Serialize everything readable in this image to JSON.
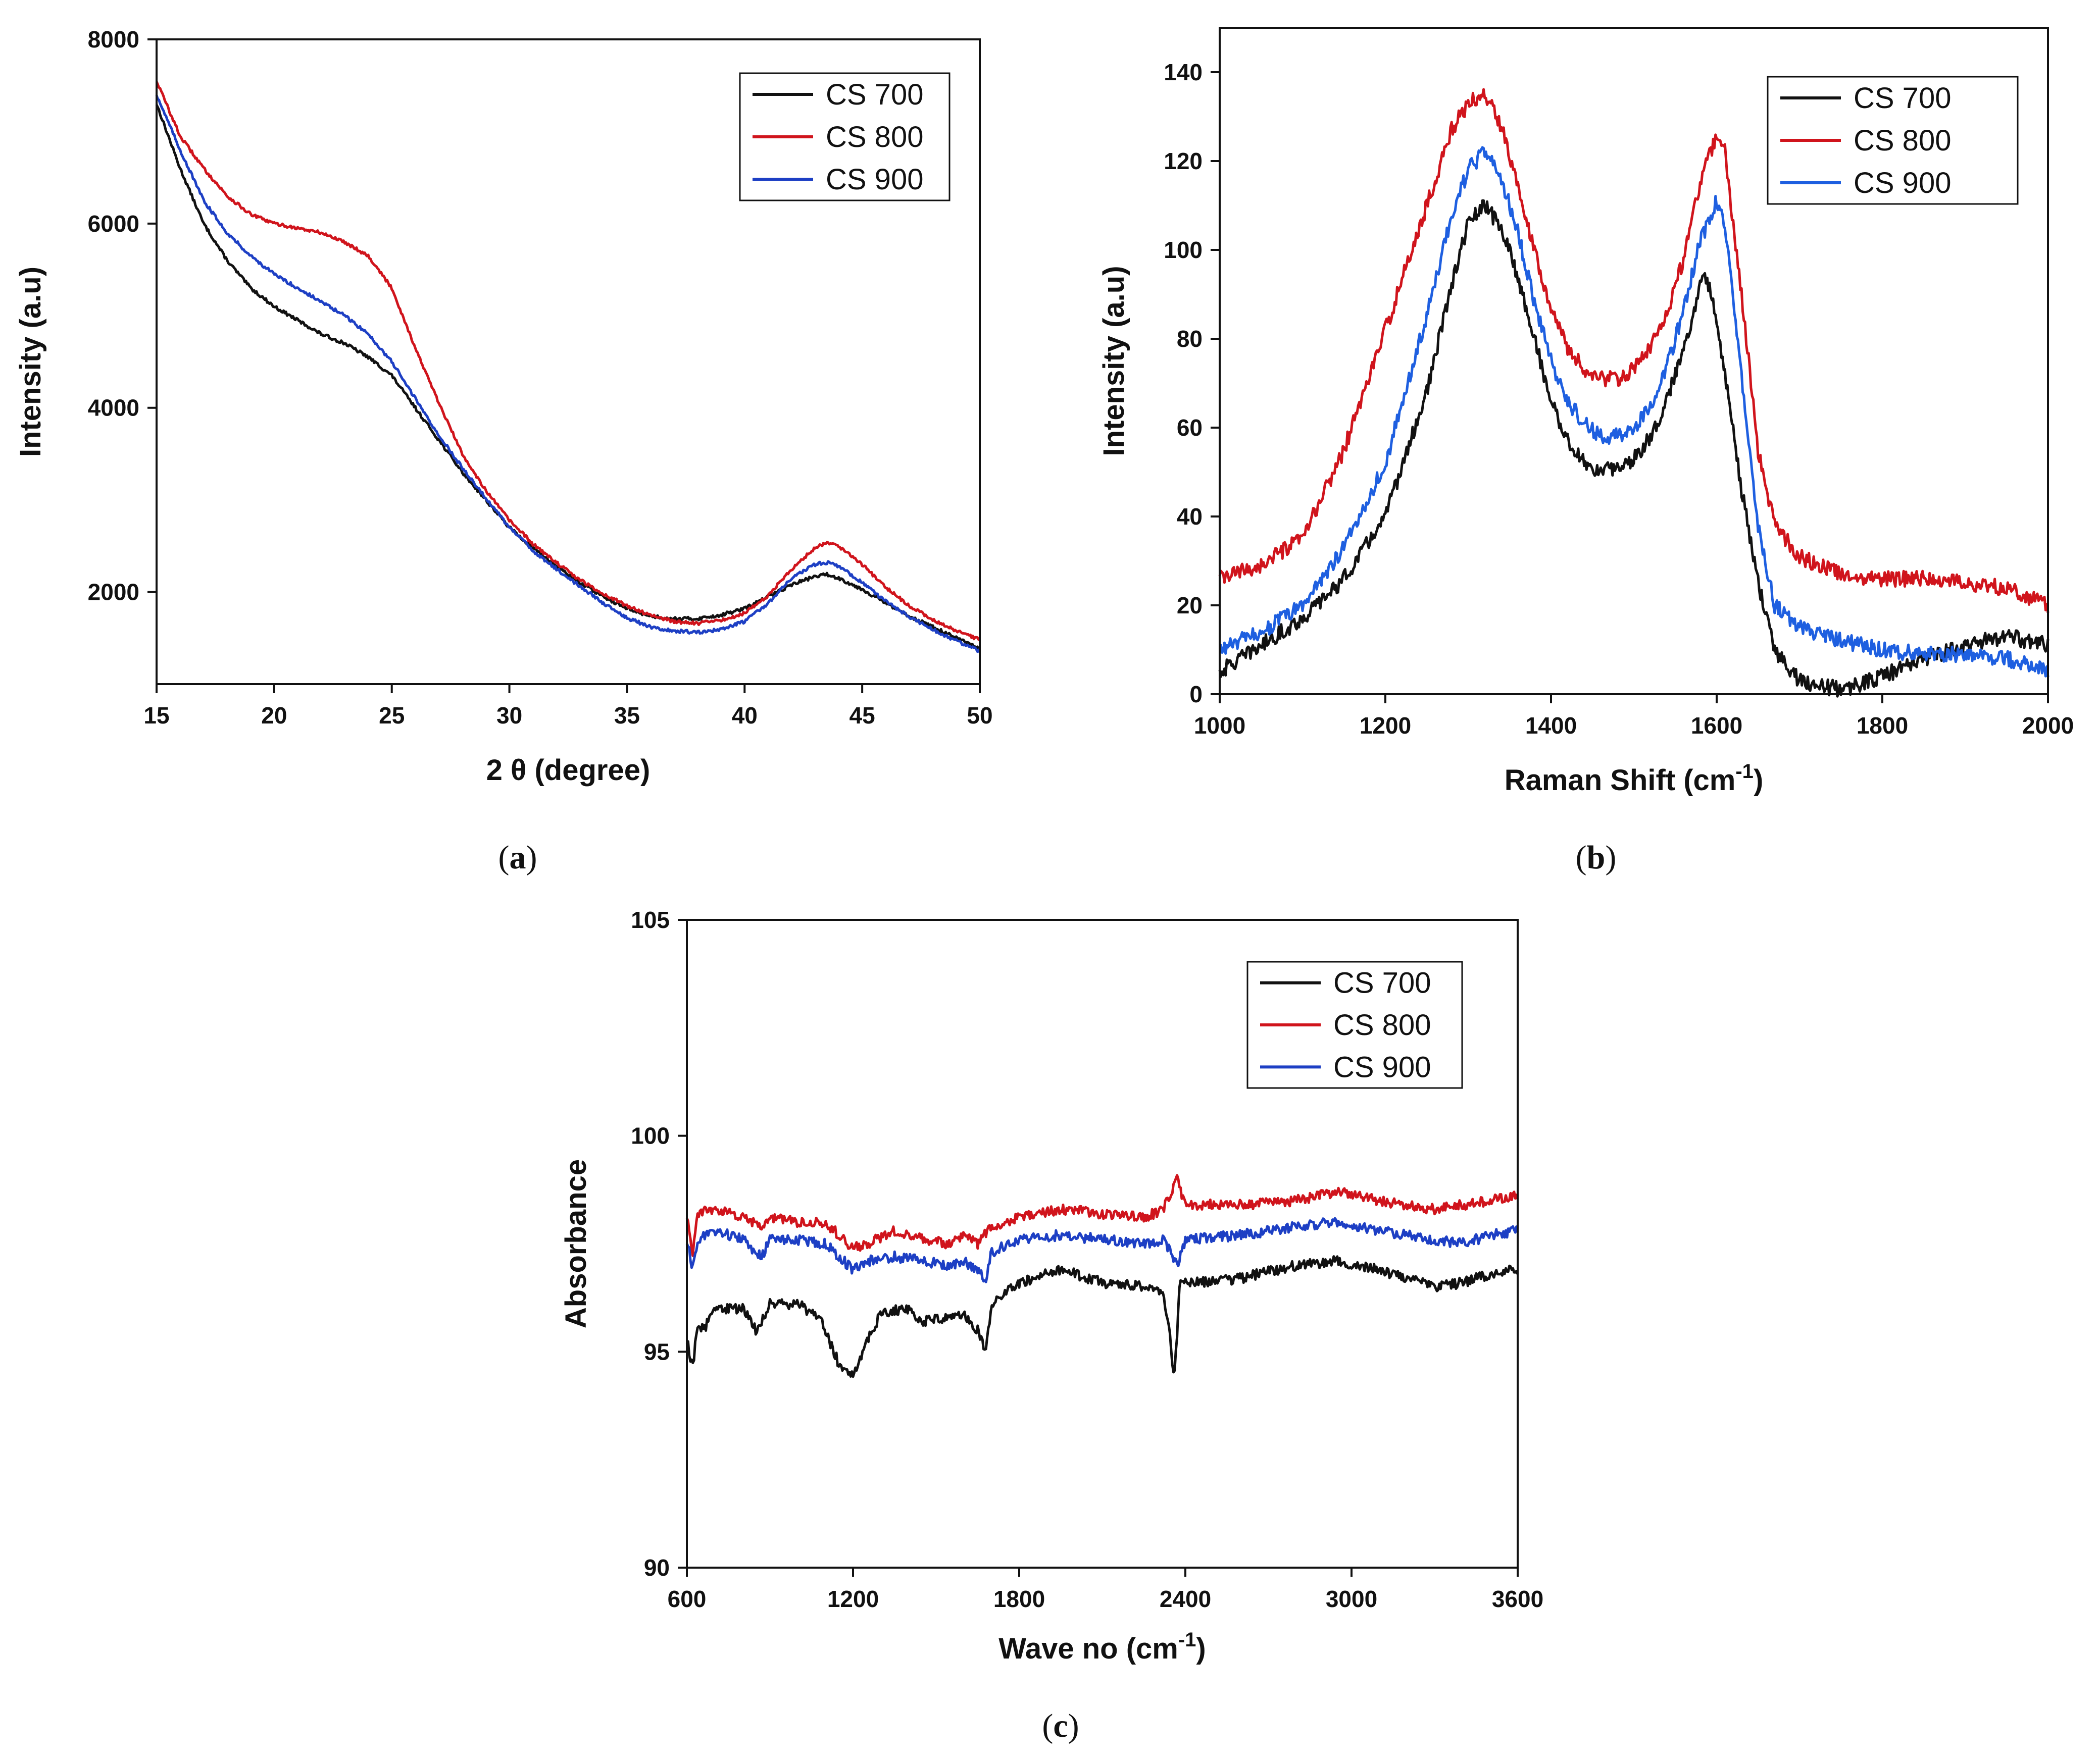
{
  "colors": {
    "cs700": "#111111",
    "cs800": "#d0141c",
    "cs900": "#1d3fc4",
    "cs900_raman": "#1e5fe0",
    "cs800_ftir": "#9a2a2a"
  },
  "chart_data": [
    {
      "panel": "a",
      "panel_label_open": "(",
      "panel_label_letter": "a",
      "panel_label_close": ")",
      "type": "line",
      "title": "",
      "xlabel": "2 θ (degree)",
      "ylabel": "Intensity (a.u)",
      "xlim": [
        15,
        50
      ],
      "ylim": [
        1000,
        8000
      ],
      "xticks": [
        15,
        20,
        25,
        30,
        35,
        40,
        45,
        50
      ],
      "yticks": [
        2000,
        4000,
        6000,
        8000
      ],
      "legend_position": "top-right",
      "grid": false,
      "series": [
        {
          "name": "CS 700",
          "color": "#111111",
          "x": [
            15,
            16,
            17,
            18,
            19,
            20,
            21,
            22,
            23,
            24,
            25,
            26,
            27,
            28,
            29,
            30,
            31,
            32,
            33,
            34,
            35,
            36,
            37,
            38,
            39,
            40,
            41,
            42,
            43,
            43.5,
            44,
            45,
            46,
            47,
            48,
            49,
            50
          ],
          "y": [
            7300,
            6600,
            6000,
            5600,
            5300,
            5100,
            4950,
            4800,
            4700,
            4550,
            4350,
            4000,
            3650,
            3300,
            3000,
            2700,
            2480,
            2280,
            2100,
            1950,
            1820,
            1740,
            1710,
            1710,
            1750,
            1820,
            1950,
            2080,
            2170,
            2190,
            2150,
            2030,
            1880,
            1740,
            1620,
            1500,
            1380
          ]
        },
        {
          "name": "CS 800",
          "color": "#d0141c",
          "x": [
            15,
            16,
            17,
            18,
            19,
            20,
            21,
            22,
            23,
            24,
            25,
            26,
            27,
            28,
            29,
            30,
            31,
            32,
            33,
            34,
            35,
            36,
            37,
            38,
            39,
            40,
            41,
            42,
            43,
            43.5,
            44,
            45,
            46,
            47,
            48,
            49,
            50
          ],
          "y": [
            7550,
            6950,
            6600,
            6300,
            6100,
            6000,
            5950,
            5900,
            5800,
            5650,
            5300,
            4650,
            4050,
            3500,
            3100,
            2780,
            2520,
            2320,
            2130,
            1980,
            1850,
            1750,
            1680,
            1660,
            1690,
            1770,
            1960,
            2250,
            2480,
            2540,
            2500,
            2300,
            2050,
            1850,
            1700,
            1580,
            1480
          ]
        },
        {
          "name": "CS 900",
          "color": "#1d3fc4",
          "x": [
            15,
            16,
            17,
            18,
            19,
            20,
            21,
            22,
            23,
            24,
            25,
            26,
            27,
            28,
            29,
            30,
            31,
            32,
            33,
            34,
            35,
            36,
            37,
            38,
            39,
            40,
            41,
            42,
            43,
            43.5,
            44,
            45,
            46,
            47,
            48,
            49,
            50
          ],
          "y": [
            7400,
            6800,
            6250,
            5900,
            5650,
            5450,
            5300,
            5150,
            5000,
            4800,
            4500,
            4100,
            3700,
            3350,
            3020,
            2700,
            2450,
            2250,
            2060,
            1880,
            1720,
            1620,
            1580,
            1560,
            1590,
            1680,
            1880,
            2150,
            2300,
            2320,
            2280,
            2100,
            1900,
            1730,
            1590,
            1470,
            1360
          ]
        }
      ]
    },
    {
      "panel": "b",
      "panel_label_open": "(",
      "panel_label_letter": "b",
      "panel_label_close": ")",
      "type": "line",
      "title": "",
      "xlabel": "Raman Shift (cm",
      "xlabel_sup": "-1",
      "xlabel_end": ")",
      "ylabel": "Intensity (a.u)",
      "xlim": [
        1000,
        2000
      ],
      "ylim": [
        0,
        150
      ],
      "xticks": [
        1000,
        1200,
        1400,
        1600,
        1800,
        2000
      ],
      "yticks": [
        0,
        20,
        40,
        60,
        80,
        100,
        120,
        140
      ],
      "legend_position": "top-right",
      "grid": false,
      "series": [
        {
          "name": "CS 700",
          "color": "#111111",
          "x": [
            1000,
            1050,
            1100,
            1150,
            1200,
            1250,
            1280,
            1300,
            1320,
            1340,
            1360,
            1380,
            1400,
            1420,
            1440,
            1460,
            1480,
            1500,
            1520,
            1540,
            1560,
            1575,
            1585,
            1595,
            1610,
            1630,
            1650,
            1670,
            1700,
            1750,
            1800,
            1850,
            1900,
            1950,
            2000
          ],
          "y": [
            5,
            11,
            17,
            26,
            40,
            68,
            92,
            106,
            110,
            105,
            94,
            80,
            66,
            57,
            52,
            50,
            51,
            53,
            58,
            66,
            78,
            88,
            95,
            90,
            72,
            46,
            25,
            10,
            3,
            1,
            4,
            8,
            11,
            13,
            11
          ]
        },
        {
          "name": "CS 800",
          "color": "#d0141c",
          "x": [
            1000,
            1050,
            1100,
            1150,
            1200,
            1250,
            1280,
            1300,
            1320,
            1340,
            1360,
            1380,
            1400,
            1420,
            1440,
            1460,
            1480,
            1500,
            1520,
            1540,
            1560,
            1580,
            1600,
            1610,
            1630,
            1650,
            1670,
            1700,
            1750,
            1800,
            1850,
            1900,
            1950,
            2000
          ],
          "y": [
            26,
            29,
            35,
            55,
            82,
            110,
            127,
            133,
            135,
            128,
            115,
            100,
            87,
            78,
            73,
            71,
            71,
            73,
            78,
            86,
            98,
            115,
            126,
            122,
            90,
            55,
            38,
            31,
            27,
            26,
            26,
            25,
            24,
            20
          ]
        },
        {
          "name": "CS 900",
          "color": "#1e5fe0",
          "x": [
            1000,
            1050,
            1100,
            1150,
            1200,
            1250,
            1280,
            1300,
            1320,
            1340,
            1360,
            1380,
            1400,
            1420,
            1440,
            1460,
            1480,
            1500,
            1520,
            1540,
            1560,
            1580,
            1600,
            1610,
            1630,
            1650,
            1670,
            1700,
            1750,
            1800,
            1850,
            1900,
            1950,
            2000
          ],
          "y": [
            10,
            14,
            20,
            33,
            52,
            85,
            108,
            118,
            122,
            116,
            104,
            88,
            75,
            66,
            61,
            58,
            58,
            60,
            65,
            74,
            86,
            102,
            111,
            106,
            72,
            38,
            20,
            15,
            12,
            10,
            9,
            9,
            8,
            5
          ]
        }
      ]
    },
    {
      "panel": "c",
      "panel_label_open": "(",
      "panel_label_letter": "c",
      "panel_label_close": ")",
      "type": "line",
      "title": "",
      "xlabel": "Wave no (cm",
      "xlabel_sup": "-1",
      "xlabel_end": ")",
      "ylabel": "Absorbance",
      "xlim": [
        600,
        3600
      ],
      "ylim": [
        90,
        105
      ],
      "xticks": [
        600,
        1200,
        1800,
        2400,
        3000,
        3600
      ],
      "yticks": [
        90,
        95,
        100,
        105
      ],
      "legend_position": "top-right",
      "grid": false,
      "series": [
        {
          "name": "CS 700",
          "color": "#111111",
          "x": [
            600,
            620,
            640,
            660,
            700,
            800,
            850,
            870,
            900,
            1000,
            1080,
            1150,
            1200,
            1250,
            1300,
            1400,
            1450,
            1550,
            1600,
            1650,
            1680,
            1700,
            1800,
            1950,
            2100,
            2250,
            2320,
            2345,
            2360,
            2380,
            2450,
            2600,
            2800,
            2950,
            3100,
            3200,
            3300,
            3400,
            3500,
            3600
          ],
          "y": [
            95.3,
            94.6,
            95.7,
            95.5,
            96.0,
            96.0,
            95.5,
            95.7,
            96.1,
            96.1,
            95.8,
            94.7,
            94.5,
            95.2,
            95.9,
            96.0,
            95.7,
            95.8,
            95.9,
            95.5,
            95.0,
            96.1,
            96.6,
            96.9,
            96.6,
            96.5,
            96.4,
            95.4,
            94.3,
            96.6,
            96.6,
            96.7,
            97.0,
            97.1,
            96.9,
            96.7,
            96.5,
            96.6,
            96.8,
            96.9
          ]
        },
        {
          "name": "CS 800",
          "color": "#d0141c",
          "x": [
            600,
            620,
            640,
            700,
            800,
            870,
            900,
            1000,
            1100,
            1200,
            1250,
            1350,
            1450,
            1550,
            1600,
            1650,
            1700,
            1800,
            1950,
            2100,
            2250,
            2320,
            2350,
            2370,
            2400,
            2600,
            2800,
            2950,
            3100,
            3300,
            3400,
            3500,
            3600
          ],
          "y": [
            98.2,
            97.2,
            98.2,
            98.3,
            98.1,
            97.9,
            98.1,
            98.0,
            98.0,
            97.4,
            97.5,
            97.8,
            97.6,
            97.5,
            97.7,
            97.5,
            97.9,
            98.1,
            98.3,
            98.2,
            98.1,
            98.3,
            98.7,
            99.0,
            98.4,
            98.4,
            98.5,
            98.7,
            98.5,
            98.3,
            98.4,
            98.5,
            98.6
          ]
        },
        {
          "name": "CS 900",
          "color": "#1d3fc4",
          "x": [
            600,
            620,
            640,
            700,
            800,
            870,
            900,
            1000,
            1100,
            1200,
            1250,
            1350,
            1450,
            1550,
            1600,
            1650,
            1680,
            1700,
            1800,
            1950,
            2100,
            2250,
            2320,
            2350,
            2370,
            2400,
            2600,
            2800,
            2950,
            3100,
            3300,
            3400,
            3500,
            3600
          ],
          "y": [
            97.6,
            96.9,
            97.6,
            97.8,
            97.6,
            97.2,
            97.6,
            97.6,
            97.5,
            96.9,
            97.1,
            97.2,
            97.1,
            97.0,
            97.1,
            96.9,
            96.6,
            97.3,
            97.6,
            97.7,
            97.6,
            97.5,
            97.6,
            97.3,
            97.0,
            97.6,
            97.7,
            97.9,
            98.0,
            97.8,
            97.6,
            97.5,
            97.7,
            97.8
          ]
        }
      ]
    }
  ]
}
